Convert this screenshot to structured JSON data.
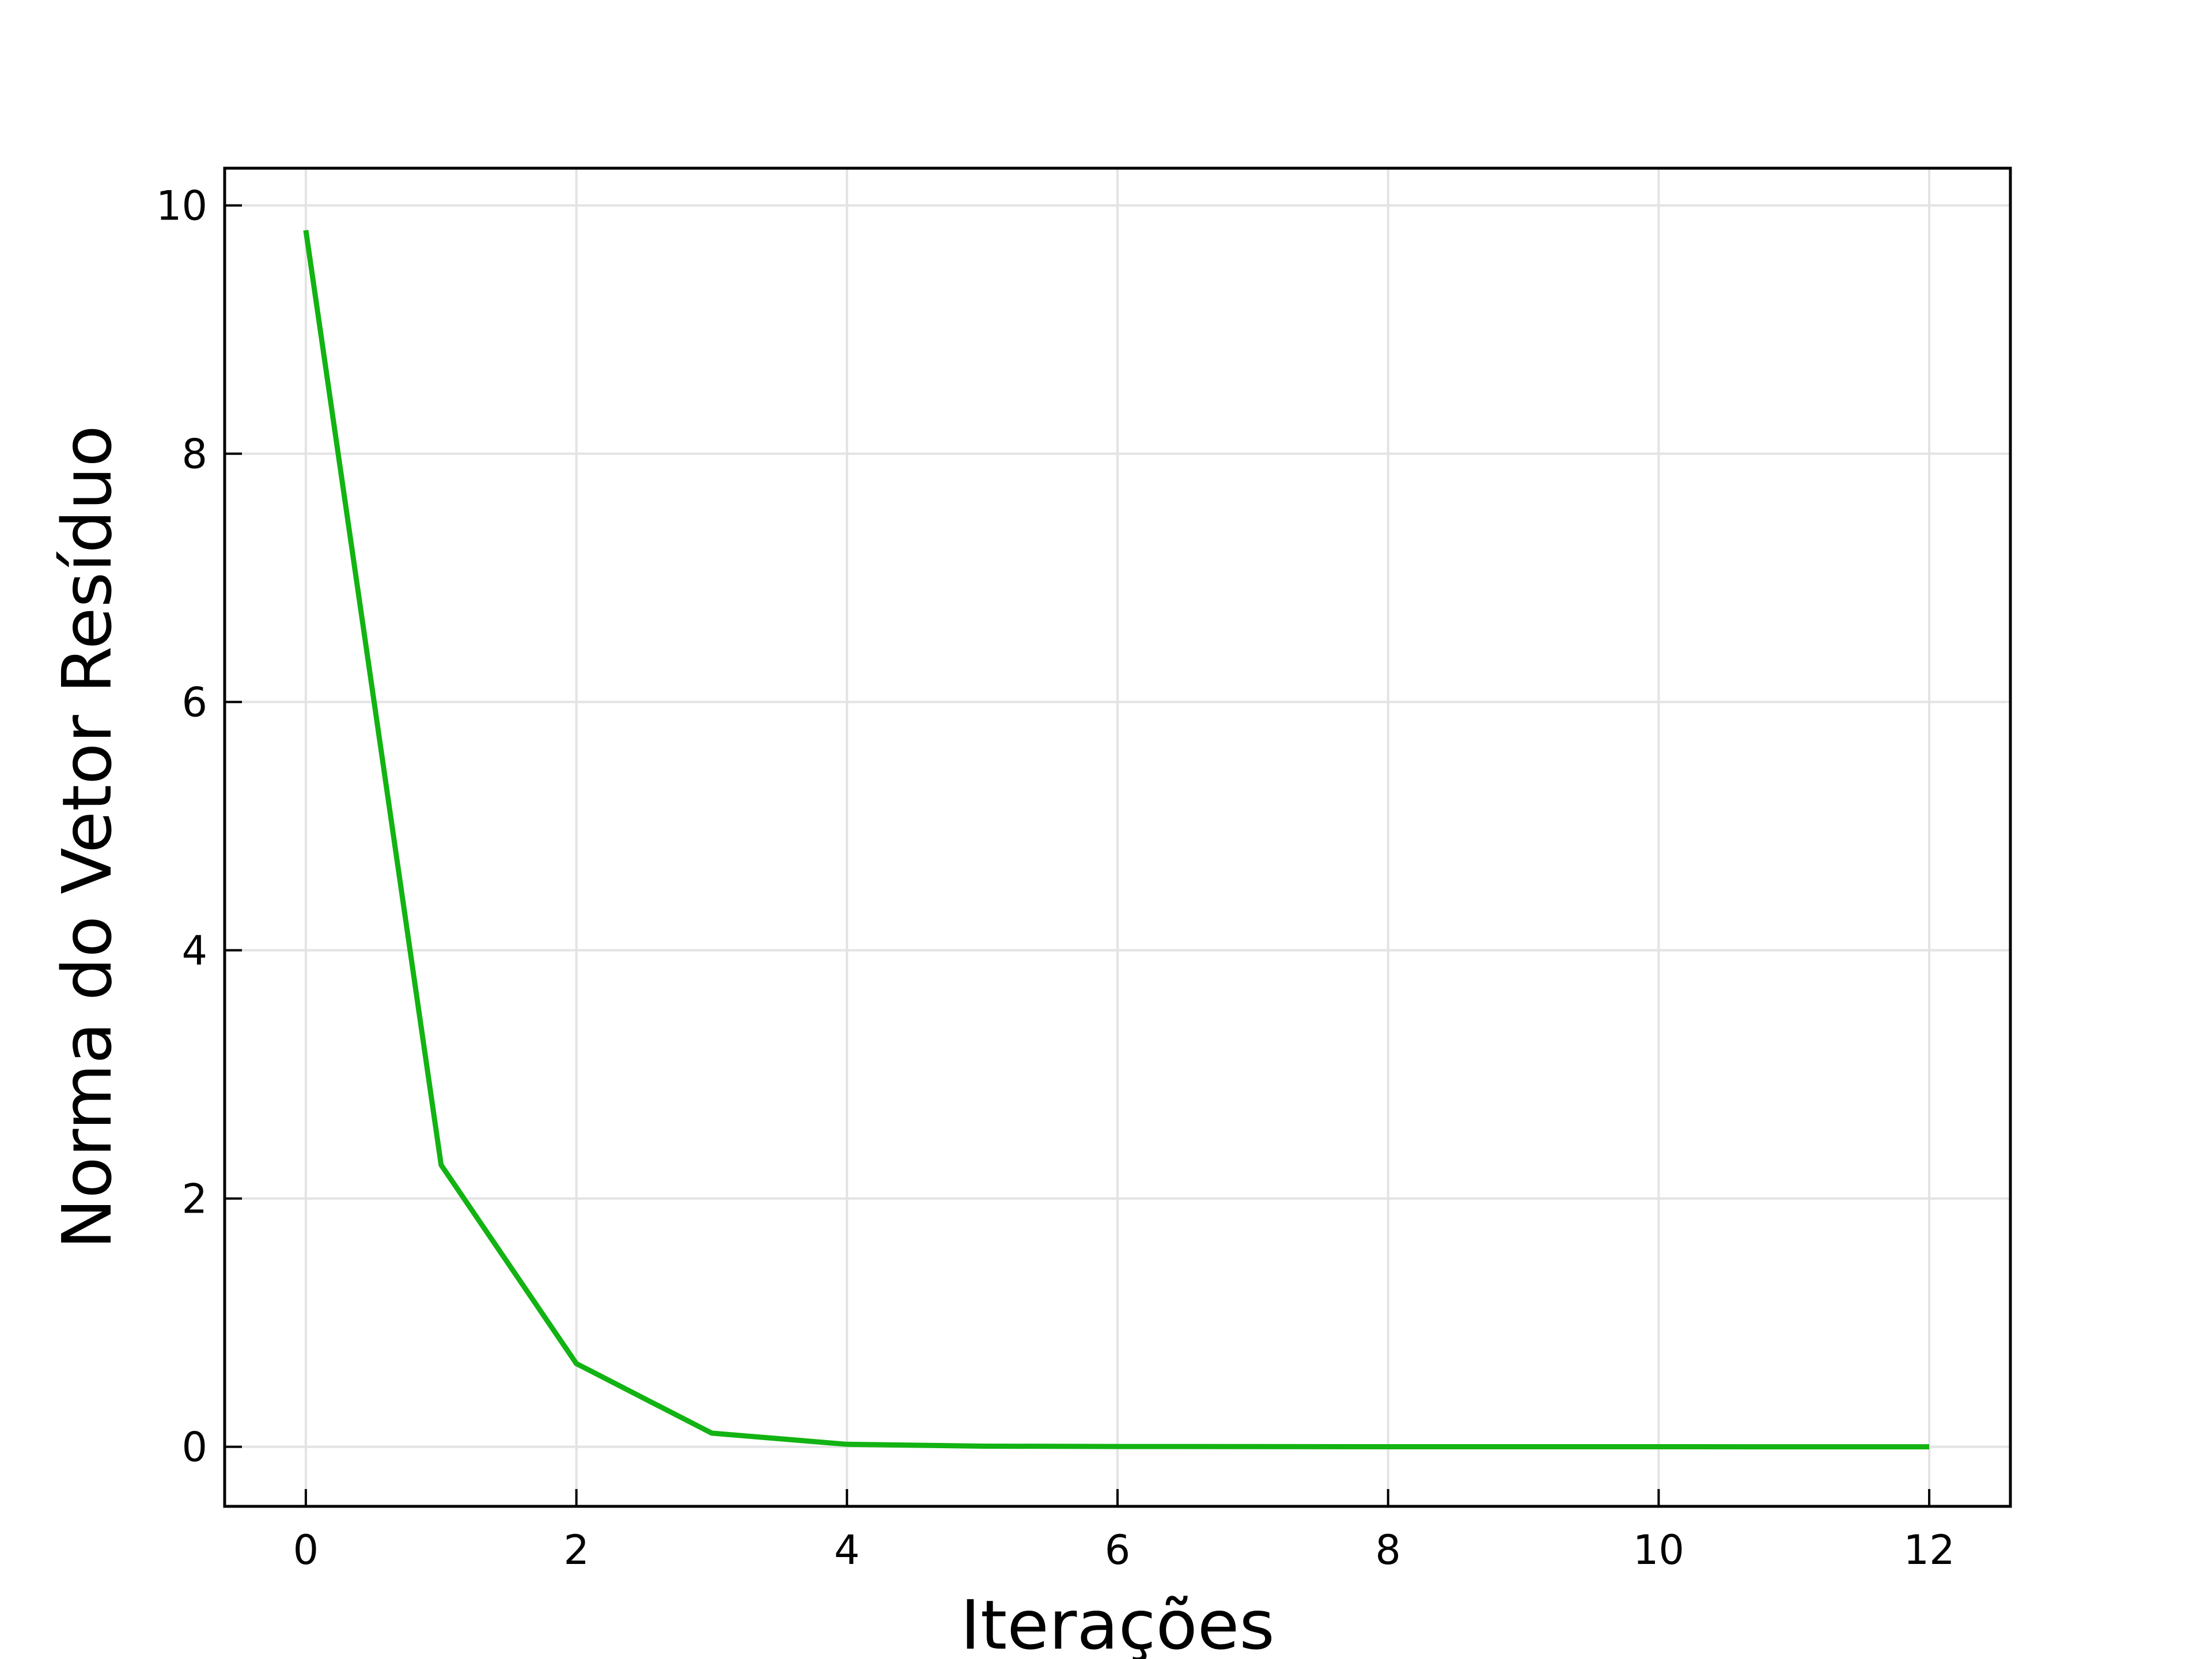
{
  "chart_data": {
    "type": "line",
    "title": "",
    "xlabel": "Iterações",
    "ylabel": "Norma do Vetor Resíduo",
    "xlim": [
      -0.6,
      12.6
    ],
    "ylim": [
      -0.48,
      10.3
    ],
    "xticks": [
      0,
      2,
      4,
      6,
      8,
      10,
      12
    ],
    "xtick_labels": [
      "0",
      "2",
      "4",
      "6",
      "8",
      "10",
      "12"
    ],
    "yticks": [
      0,
      2,
      4,
      6,
      8,
      10
    ],
    "ytick_labels": [
      "0",
      "2",
      "4",
      "6",
      "8",
      "10"
    ],
    "grid": true,
    "legend": "none",
    "series": [
      {
        "color": "#12b312",
        "x": [
          0,
          1,
          2,
          3,
          4,
          5,
          6,
          7,
          8,
          9,
          10,
          11,
          12
        ],
        "y": [
          9.8,
          2.27,
          0.67,
          0.11,
          0.02,
          0.005,
          0.002,
          0.001,
          0.0005,
          0.0002,
          0.0001,
          5e-05,
          2e-05
        ]
      }
    ]
  }
}
